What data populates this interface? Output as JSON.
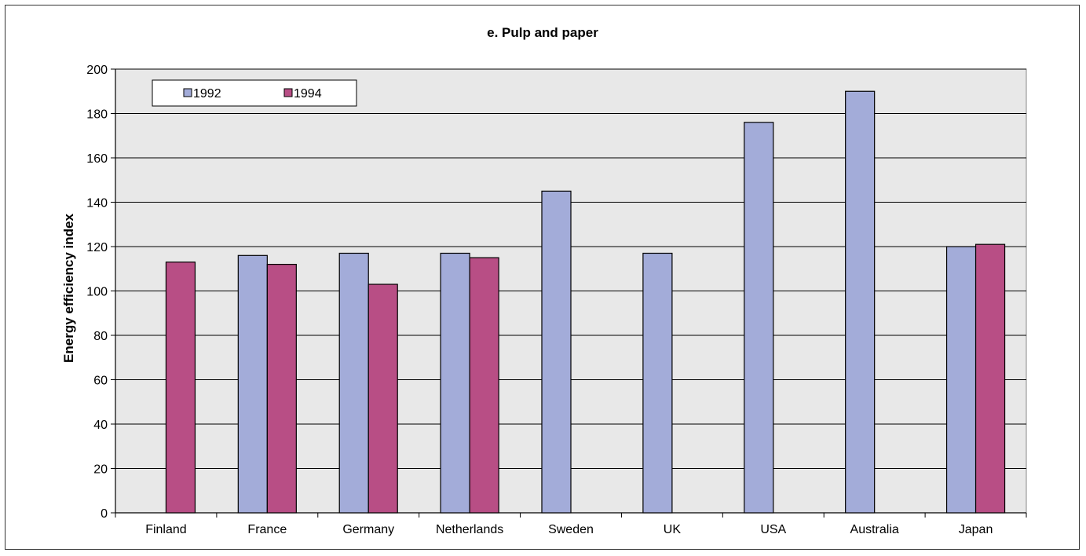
{
  "chart_data": {
    "type": "bar",
    "title": "e. Pulp and paper",
    "ylabel": "Energy efficiency index",
    "xlabel": "",
    "ylim": [
      0,
      200
    ],
    "yticks": [
      0,
      20,
      40,
      60,
      80,
      100,
      120,
      140,
      160,
      180,
      200
    ],
    "grid": true,
    "legend_position": "top-left",
    "categories": [
      "Finland",
      "France",
      "Germany",
      "Netherlands",
      "Sweden",
      "UK",
      "USA",
      "Australia",
      "Japan"
    ],
    "series": [
      {
        "name": "1992",
        "color": "#a3acd9",
        "values": [
          null,
          116,
          117,
          117,
          145,
          117,
          176,
          190,
          120
        ]
      },
      {
        "name": "1994",
        "color": "#b84e85",
        "values": [
          113,
          112,
          103,
          115,
          null,
          null,
          null,
          null,
          121
        ]
      }
    ],
    "plot_background": "#e8e8e8"
  }
}
